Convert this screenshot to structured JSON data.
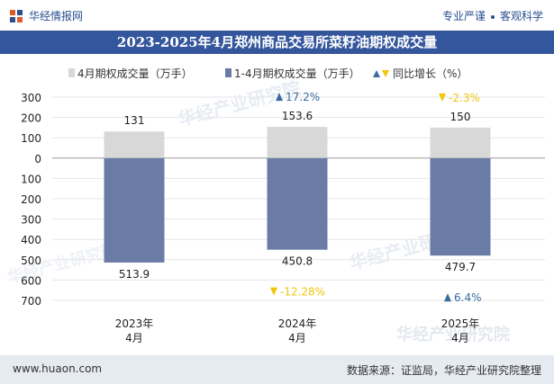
{
  "header": {
    "brand": "华经情报网",
    "tag1": "专业严谨",
    "tag2": "客观科学"
  },
  "title": "2023-2025年4月郑州商品交易所菜籽油期权成交量",
  "footer": {
    "site": "www.huaon.com",
    "source": "数据来源：证监局，华经产业研究院整理"
  },
  "watermark": "华经产业研究院",
  "watermark_sub": "www.huaon.com",
  "colors": {
    "header_bg": "#34569c",
    "april_bar": "#d8d8d8",
    "ytd_bar": "#6a7ba6",
    "up": "#3a6aa0",
    "down": "#f2c40a"
  },
  "chart_data": {
    "type": "bar",
    "categories": [
      "2023年4月",
      "2024年4月",
      "2025年4月"
    ],
    "category_lines": [
      [
        "2023年",
        "4月"
      ],
      [
        "2024年",
        "4月"
      ],
      [
        "2025年",
        "4月"
      ]
    ],
    "series": [
      {
        "name": "4月期权成交量（万手）",
        "values": [
          131,
          153.6,
          150
        ],
        "labels": [
          "131",
          "153.6",
          "150"
        ]
      },
      {
        "name": "1-4月期权成交量（万手）",
        "values": [
          -513.9,
          -450.8,
          -479.7
        ],
        "labels": [
          "513.9",
          "450.8",
          "479.7"
        ]
      }
    ],
    "growth_legend": "同比增长（%）",
    "growth_april": [
      {
        "text": "",
        "dir": ""
      },
      {
        "text": "17.2%",
        "dir": "up"
      },
      {
        "text": "-2.3%",
        "dir": "down"
      }
    ],
    "growth_ytd": [
      {
        "text": "",
        "dir": ""
      },
      {
        "text": "-12.28%",
        "dir": "down"
      },
      {
        "text": "6.4%",
        "dir": "up"
      }
    ],
    "yticks": [
      300,
      200,
      100,
      0,
      -100,
      -200,
      -300,
      -400,
      -500,
      -600,
      -700
    ],
    "ytick_labels": [
      "300",
      "200",
      "100",
      "0",
      "100",
      "200",
      "300",
      "400",
      "500",
      "600",
      "700"
    ],
    "ylim": [
      -700,
      300
    ],
    "grid": true,
    "legend_position": "top"
  }
}
